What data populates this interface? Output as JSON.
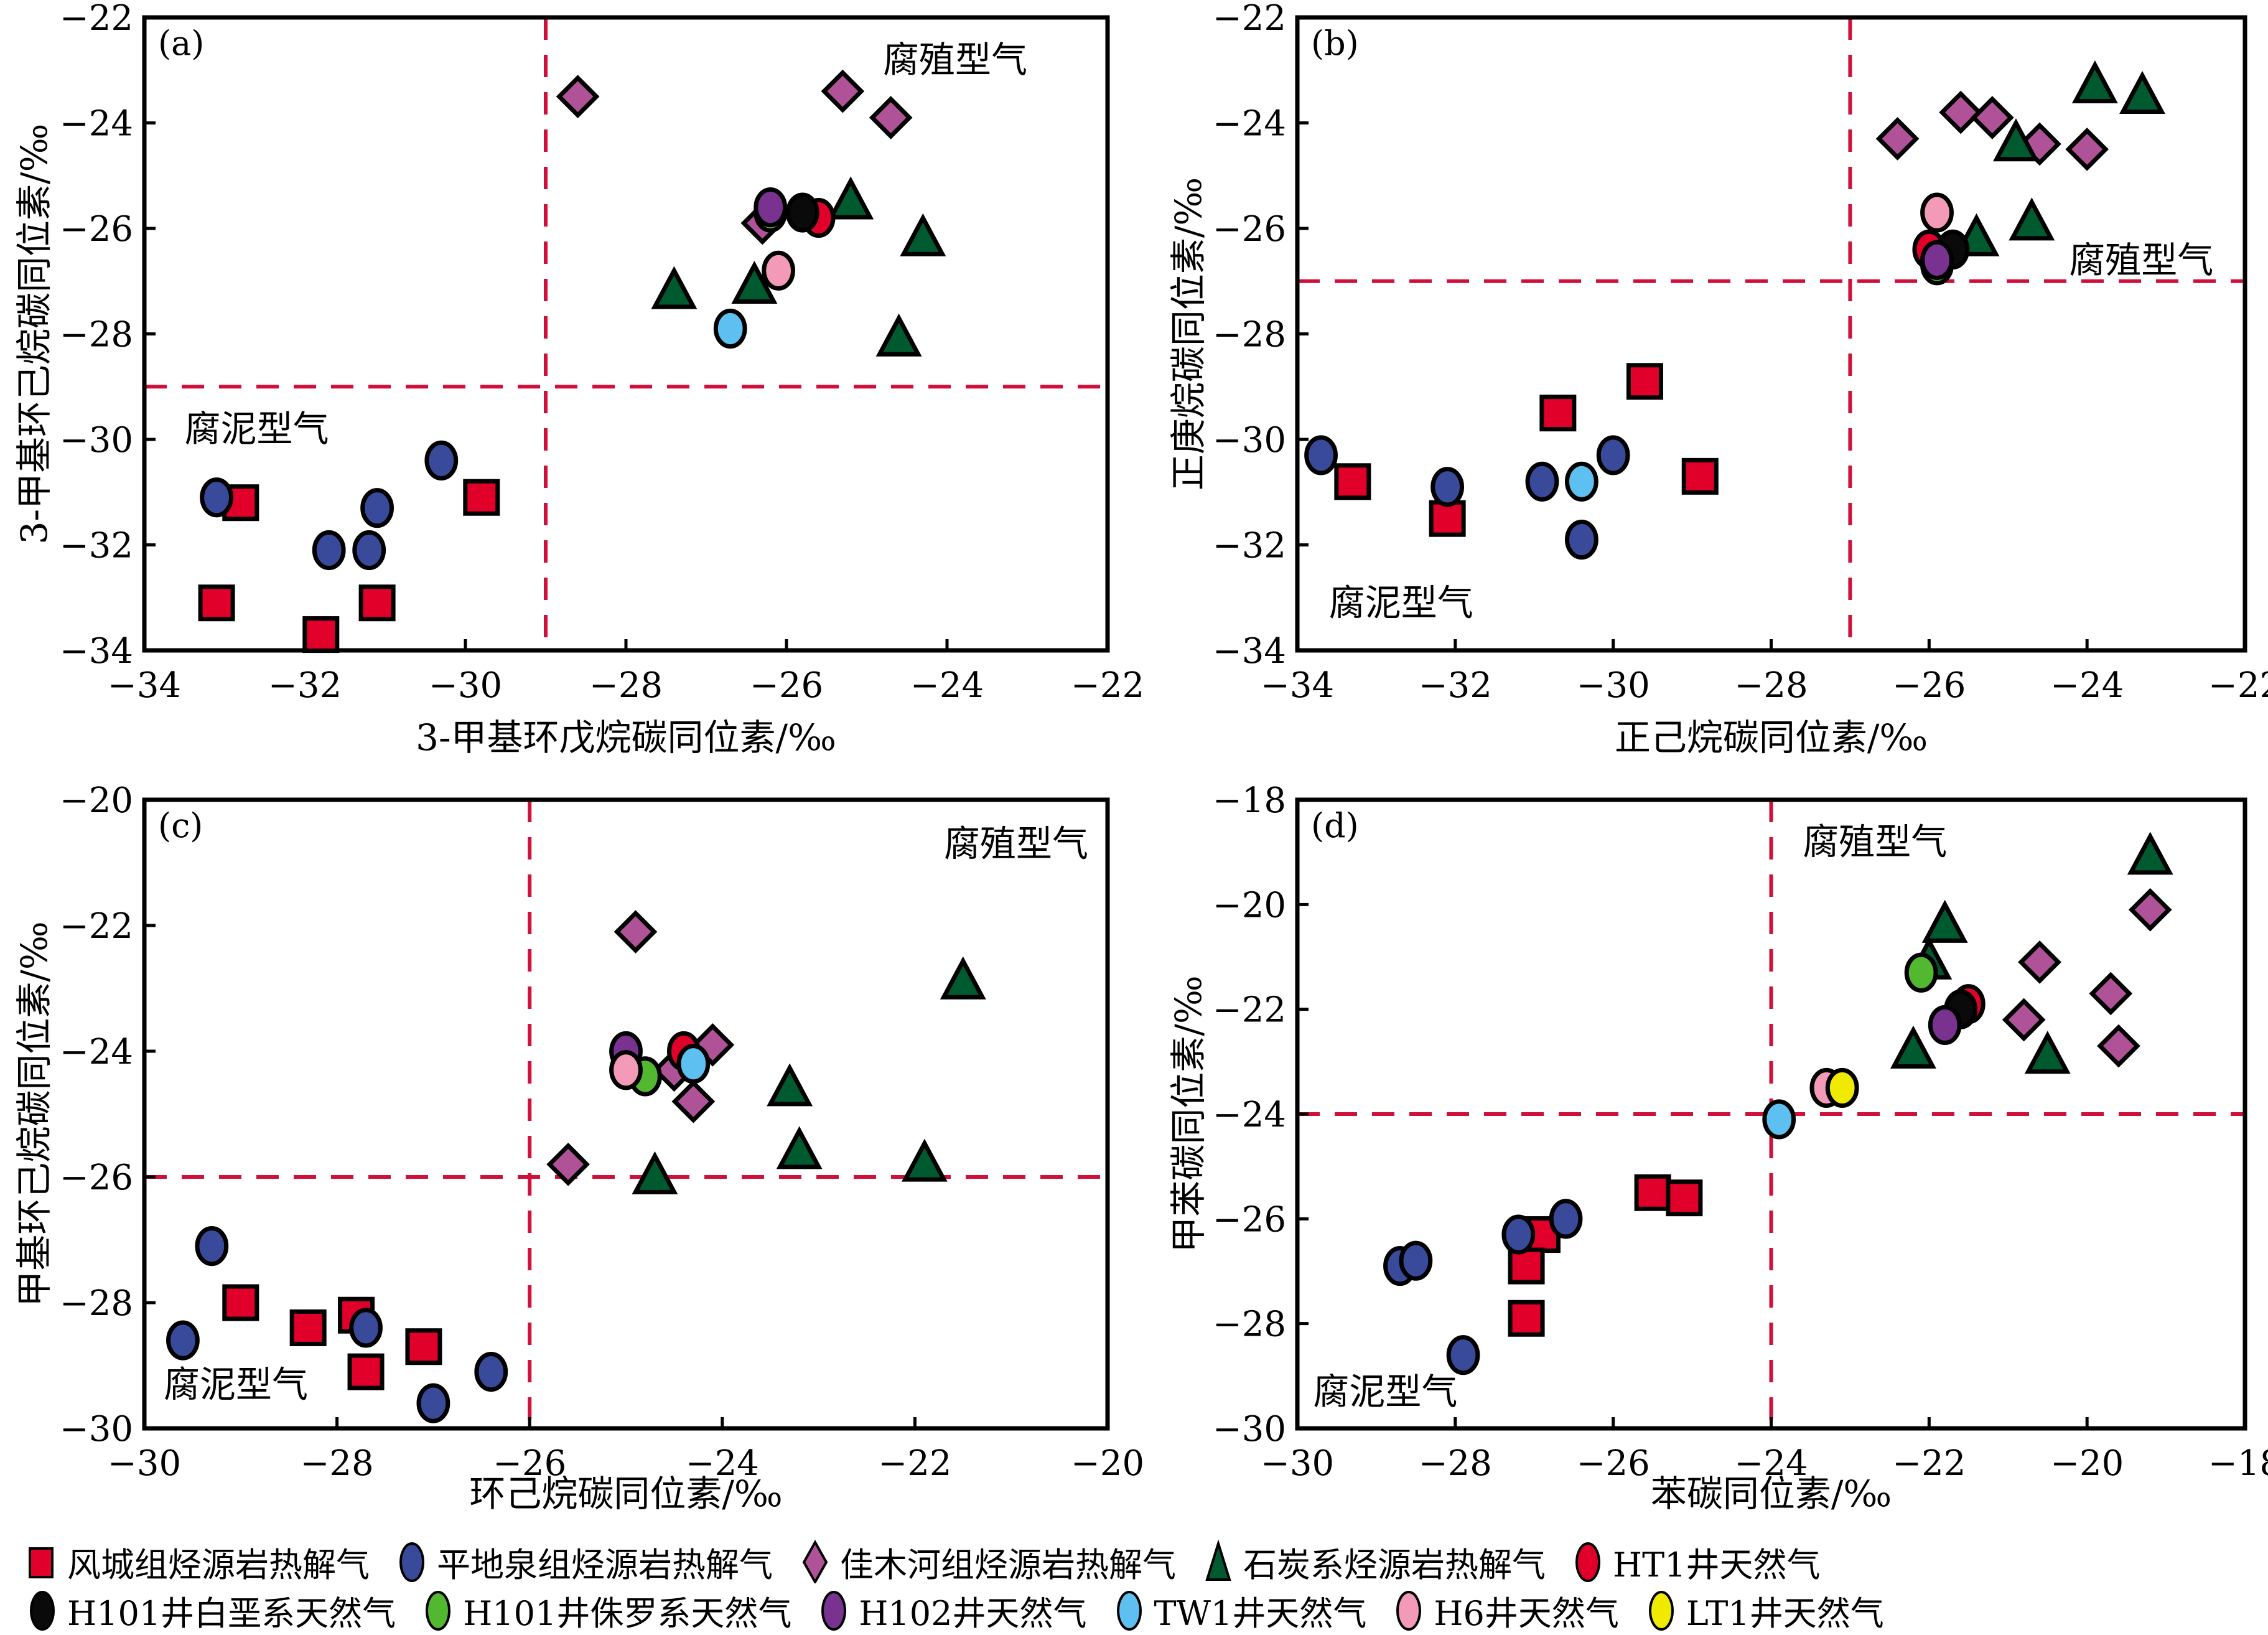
{
  "series_styles": {
    "fengcheng": {
      "label": "风城组烃源岩热解气",
      "marker": "square",
      "fill": "#e0002a"
    },
    "pingdiquan": {
      "label": "平地泉组烃源岩热解气",
      "marker": "circle",
      "fill": "#3a4a9a"
    },
    "jiamuhe": {
      "label": "佳木河组烃源岩热解气",
      "marker": "diamond",
      "fill": "#b05298"
    },
    "carboniferous": {
      "label": "石炭系烃源岩热解气",
      "marker": "triangle",
      "fill": "#005a30"
    },
    "HT1": {
      "label": "HT1井天然气",
      "marker": "circle",
      "fill": "#e0002a"
    },
    "H101_K": {
      "label": "H101井白垩系天然气",
      "marker": "circle",
      "fill": "#0a0a0a"
    },
    "H101_J": {
      "label": "H101井侏罗系天然气",
      "marker": "circle",
      "fill": "#52b830"
    },
    "H102": {
      "label": "H102井天然气",
      "marker": "circle",
      "fill": "#7a3290"
    },
    "TW1": {
      "label": "TW1井天然气",
      "marker": "circle",
      "fill": "#5ec0f0"
    },
    "H6": {
      "label": "H6井天然气",
      "marker": "circle",
      "fill": "#f29ab8"
    },
    "LT1": {
      "label": "LT1井天然气",
      "marker": "circle",
      "fill": "#f0ea00"
    }
  },
  "legend": {
    "rows": [
      [
        "fengcheng",
        "pingdiquan",
        "jiamuhe",
        "carboniferous",
        "HT1"
      ],
      [
        "H101_K",
        "H101_J",
        "H102",
        "TW1",
        "H6",
        "LT1"
      ]
    ]
  },
  "colors": {
    "divider": "#d0103a",
    "axis": "#000000"
  },
  "chart_data": [
    {
      "type": "scatter",
      "panel_label": "(a)",
      "xlabel": "3-甲基环戊烷碳同位素/‰",
      "ylabel": "3-甲基环己烷碳同位素/‰",
      "xlim": [
        -34,
        -22
      ],
      "ylim": [
        -34,
        -22
      ],
      "xticks": [
        -34,
        -32,
        -30,
        -28,
        -26,
        -24,
        -22
      ],
      "yticks": [
        -34,
        -32,
        -30,
        -28,
        -26,
        -24,
        -22
      ],
      "divider_x": -29,
      "divider_y": -29,
      "annotations": [
        {
          "text": "腐殖型气",
          "x": -23,
          "y": -22.8,
          "anchor": "end"
        },
        {
          "text": "腐泥型气",
          "x": -33.5,
          "y": -29.8,
          "anchor": "start"
        }
      ],
      "series": [
        {
          "key": "fengcheng",
          "points": [
            [
              -32.8,
              -31.2
            ],
            [
              -29.8,
              -31.1
            ],
            [
              -33.1,
              -33.1
            ],
            [
              -31.1,
              -33.1
            ],
            [
              -31.8,
              -33.7
            ]
          ]
        },
        {
          "key": "pingdiquan",
          "points": [
            [
              -33.1,
              -31.1
            ],
            [
              -31.1,
              -31.3
            ],
            [
              -30.3,
              -30.4
            ],
            [
              -31.7,
              -32.1
            ],
            [
              -31.2,
              -32.1
            ]
          ]
        },
        {
          "key": "jiamuhe",
          "points": [
            [
              -28.6,
              -23.5
            ],
            [
              -25.3,
              -23.4
            ],
            [
              -24.7,
              -23.9
            ],
            [
              -26.3,
              -25.9
            ]
          ]
        },
        {
          "key": "carboniferous",
          "points": [
            [
              -25.2,
              -25.5
            ],
            [
              -24.3,
              -26.2
            ],
            [
              -27.4,
              -27.2
            ],
            [
              -26.4,
              -27.1
            ],
            [
              -24.6,
              -28.1
            ]
          ]
        },
        {
          "key": "HT1",
          "points": [
            [
              -25.6,
              -25.8
            ]
          ]
        },
        {
          "key": "H101_K",
          "points": [
            [
              -25.8,
              -25.7
            ]
          ]
        },
        {
          "key": "H101_J",
          "points": [
            [
              -26.2,
              -25.7
            ]
          ]
        },
        {
          "key": "H102",
          "points": [
            [
              -26.2,
              -25.6
            ]
          ]
        },
        {
          "key": "TW1",
          "points": [
            [
              -26.7,
              -27.9
            ]
          ]
        },
        {
          "key": "H6",
          "points": [
            [
              -26.1,
              -26.8
            ]
          ]
        }
      ]
    },
    {
      "type": "scatter",
      "panel_label": "(b)",
      "xlabel": "正己烷碳同位素/‰",
      "ylabel": "正庚烷碳同位素/‰",
      "xlim": [
        -34,
        -22
      ],
      "ylim": [
        -34,
        -22
      ],
      "xticks": [
        -34,
        -32,
        -30,
        -28,
        -26,
        -24,
        -22
      ],
      "yticks": [
        -34,
        -32,
        -30,
        -28,
        -26,
        -24,
        -22
      ],
      "divider_x": -27,
      "divider_y": -27,
      "annotations": [
        {
          "text": "腐殖型气",
          "x": -22.4,
          "y": -26.6,
          "anchor": "end"
        },
        {
          "text": "腐泥型气",
          "x": -33.6,
          "y": -33.1,
          "anchor": "start"
        }
      ],
      "series": [
        {
          "key": "fengcheng",
          "points": [
            [
              -33.3,
              -30.8
            ],
            [
              -32.1,
              -31.5
            ],
            [
              -30.7,
              -29.5
            ],
            [
              -29.6,
              -28.9
            ],
            [
              -28.9,
              -30.7
            ]
          ]
        },
        {
          "key": "pingdiquan",
          "points": [
            [
              -33.7,
              -30.3
            ],
            [
              -32.1,
              -30.9
            ],
            [
              -30.9,
              -30.8
            ],
            [
              -30.0,
              -30.3
            ],
            [
              -30.4,
              -31.9
            ]
          ]
        },
        {
          "key": "jiamuhe",
          "points": [
            [
              -26.4,
              -24.3
            ],
            [
              -25.6,
              -23.8
            ],
            [
              -25.2,
              -23.9
            ],
            [
              -24.6,
              -24.4
            ],
            [
              -24.0,
              -24.5
            ]
          ]
        },
        {
          "key": "carboniferous",
          "points": [
            [
              -23.9,
              -23.3
            ],
            [
              -23.3,
              -23.5
            ],
            [
              -24.9,
              -24.4
            ],
            [
              -25.4,
              -26.2
            ],
            [
              -24.7,
              -25.9
            ]
          ]
        },
        {
          "key": "HT1",
          "points": [
            [
              -26.0,
              -26.4
            ]
          ]
        },
        {
          "key": "H101_K",
          "points": [
            [
              -25.7,
              -26.4
            ]
          ]
        },
        {
          "key": "H101_J",
          "points": [
            [
              -25.9,
              -26.7
            ]
          ]
        },
        {
          "key": "H102",
          "points": [
            [
              -25.9,
              -26.6
            ]
          ]
        },
        {
          "key": "TW1",
          "points": [
            [
              -30.4,
              -30.8
            ]
          ]
        },
        {
          "key": "H6",
          "points": [
            [
              -25.9,
              -25.7
            ]
          ]
        }
      ]
    },
    {
      "type": "scatter",
      "panel_label": "(c)",
      "xlabel": "环己烷碳同位素/‰",
      "ylabel": "甲基环己烷碳同位素/‰",
      "xlim": [
        -30,
        -20
      ],
      "ylim": [
        -30,
        -20
      ],
      "xticks": [
        -30,
        -28,
        -26,
        -24,
        -22,
        -20
      ],
      "yticks": [
        -30,
        -28,
        -26,
        -24,
        -22,
        -20
      ],
      "divider_x": -26,
      "divider_y": -26,
      "annotations": [
        {
          "text": "腐殖型气",
          "x": -20.2,
          "y": -20.7,
          "anchor": "end"
        },
        {
          "text": "腐泥型气",
          "x": -29.8,
          "y": -29.3,
          "anchor": "start"
        }
      ],
      "series": [
        {
          "key": "fengcheng",
          "points": [
            [
              -29.0,
              -28.0
            ],
            [
              -28.3,
              -28.4
            ],
            [
              -27.8,
              -28.2
            ],
            [
              -27.7,
              -29.1
            ],
            [
              -27.1,
              -28.7
            ]
          ]
        },
        {
          "key": "pingdiquan",
          "points": [
            [
              -29.3,
              -27.1
            ],
            [
              -29.6,
              -28.6
            ],
            [
              -27.7,
              -28.4
            ],
            [
              -27.0,
              -29.6
            ],
            [
              -26.4,
              -29.1
            ]
          ]
        },
        {
          "key": "jiamuhe",
          "points": [
            [
              -24.9,
              -22.1
            ],
            [
              -24.1,
              -23.9
            ],
            [
              -24.5,
              -24.3
            ],
            [
              -24.3,
              -24.8
            ],
            [
              -25.6,
              -25.8
            ]
          ]
        },
        {
          "key": "carboniferous",
          "points": [
            [
              -21.5,
              -22.9
            ],
            [
              -23.3,
              -24.6
            ],
            [
              -23.2,
              -25.6
            ],
            [
              -21.9,
              -25.8
            ],
            [
              -24.7,
              -26.0
            ]
          ]
        },
        {
          "key": "HT1",
          "points": [
            [
              -24.4,
              -24.0
            ]
          ]
        },
        {
          "key": "H102",
          "points": [
            [
              -25.0,
              -24.0
            ]
          ]
        },
        {
          "key": "H101_J",
          "points": [
            [
              -24.8,
              -24.4
            ]
          ]
        },
        {
          "key": "H6",
          "points": [
            [
              -25.0,
              -24.3
            ]
          ]
        },
        {
          "key": "TW1",
          "points": [
            [
              -24.3,
              -24.2
            ]
          ]
        }
      ]
    },
    {
      "type": "scatter",
      "panel_label": "(d)",
      "xlabel": "苯碳同位素/‰",
      "ylabel": "甲苯碳同位素/‰",
      "xlim": [
        -30,
        -18
      ],
      "ylim": [
        -30,
        -18
      ],
      "xticks": [
        -30,
        -28,
        -26,
        -24,
        -22,
        -20,
        -18
      ],
      "yticks": [
        -30,
        -28,
        -26,
        -24,
        -22,
        -20,
        -18
      ],
      "divider_x": -24,
      "divider_y": -24,
      "annotations": [
        {
          "text": "腐殖型气",
          "x": -23.6,
          "y": -18.8,
          "anchor": "start"
        },
        {
          "text": "腐泥型气",
          "x": -29.8,
          "y": -29.3,
          "anchor": "start"
        }
      ],
      "series": [
        {
          "key": "fengcheng",
          "points": [
            [
              -26.9,
              -26.3
            ],
            [
              -27.1,
              -26.9
            ],
            [
              -27.1,
              -27.9
            ],
            [
              -25.5,
              -25.5
            ],
            [
              -25.1,
              -25.6
            ]
          ]
        },
        {
          "key": "pingdiquan",
          "points": [
            [
              -28.7,
              -26.9
            ],
            [
              -28.5,
              -26.8
            ],
            [
              -27.2,
              -26.3
            ],
            [
              -26.6,
              -26.0
            ],
            [
              -27.9,
              -28.6
            ]
          ]
        },
        {
          "key": "jiamuhe",
          "points": [
            [
              -19.2,
              -20.1
            ],
            [
              -20.6,
              -21.1
            ],
            [
              -19.7,
              -21.7
            ],
            [
              -20.8,
              -22.2
            ],
            [
              -19.6,
              -22.7
            ]
          ]
        },
        {
          "key": "carboniferous",
          "points": [
            [
              -19.2,
              -19.1
            ],
            [
              -21.8,
              -20.4
            ],
            [
              -22.0,
              -21.1
            ],
            [
              -22.2,
              -22.8
            ],
            [
              -20.5,
              -22.9
            ]
          ]
        },
        {
          "key": "HT1",
          "points": [
            [
              -21.5,
              -21.9
            ]
          ]
        },
        {
          "key": "H101_K",
          "points": [
            [
              -21.6,
              -22.0
            ]
          ]
        },
        {
          "key": "H101_J",
          "points": [
            [
              -22.1,
              -21.3
            ]
          ]
        },
        {
          "key": "H102",
          "points": [
            [
              -21.8,
              -22.3
            ]
          ]
        },
        {
          "key": "TW1",
          "points": [
            [
              -23.9,
              -24.1
            ]
          ]
        },
        {
          "key": "H6",
          "points": [
            [
              -23.3,
              -23.5
            ]
          ]
        },
        {
          "key": "LT1",
          "points": [
            [
              -23.1,
              -23.5
            ]
          ]
        }
      ]
    }
  ]
}
